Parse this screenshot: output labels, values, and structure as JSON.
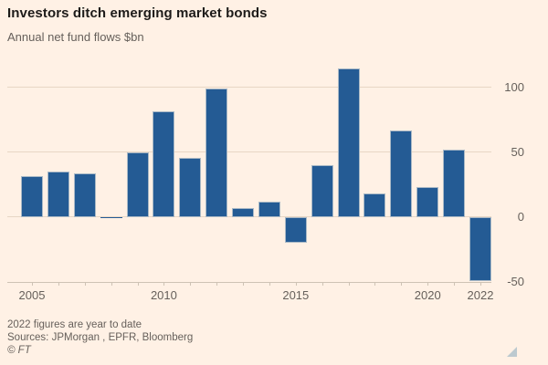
{
  "header": {
    "title": "Investors ditch emerging market bonds",
    "subtitle": "Annual net fund flows $bn"
  },
  "chart_data": {
    "type": "bar",
    "title": "Investors ditch emerging market bonds",
    "subtitle": "Annual net fund flows $bn",
    "categories": [
      2005,
      2006,
      2007,
      2008,
      2009,
      2010,
      2011,
      2012,
      2013,
      2014,
      2015,
      2016,
      2017,
      2018,
      2019,
      2020,
      2021,
      2022
    ],
    "values": [
      32,
      35,
      34,
      -1,
      50,
      82,
      46,
      99,
      7,
      12,
      -20,
      40,
      115,
      18,
      67,
      23,
      52,
      -49
    ],
    "xlabel": "",
    "ylabel": "Annual net fund flows $bn",
    "ylim": [
      -50,
      122.5
    ],
    "yticks": [
      -50,
      0,
      50,
      100
    ],
    "ytick_labels": [
      "-50",
      "0",
      "50",
      "100"
    ],
    "xtick_years_labeled": [
      2005,
      2010,
      2015,
      2020,
      2022
    ],
    "grid": true,
    "legend": false,
    "y_axis_side": "right",
    "bar_color": "#245B94",
    "background_color": "#FFF1E5"
  },
  "footer": {
    "note": "2022 figures are year to date",
    "sources": "Sources: JPMorgan , EPFR, Bloomberg",
    "copyright": "© FT"
  },
  "icons": {
    "resize_handle": "corner-triangle"
  }
}
